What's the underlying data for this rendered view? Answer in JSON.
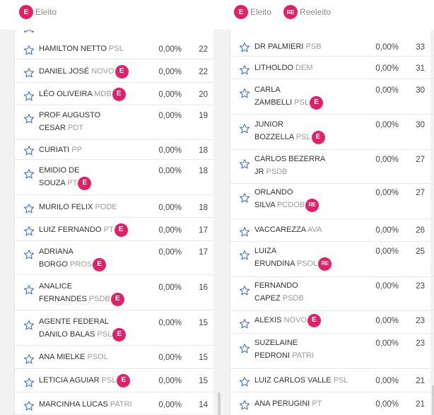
{
  "legend_left": {
    "badge": "E",
    "label": "Eleito"
  },
  "legend_right": [
    {
      "badge": "E",
      "label": "Eleito"
    },
    {
      "badge": "RE",
      "label": "Reeleito"
    }
  ],
  "left_column": [
    {
      "line1": "HAMILTON NETTO",
      "line2": "",
      "party": "PSL",
      "badge": "",
      "pct": "0,00%",
      "votes": "22"
    },
    {
      "line1": "DANIEL JOSÉ",
      "line2": "",
      "party": "NOVO",
      "badge": "E",
      "pct": "0,00%",
      "votes": "22"
    },
    {
      "line1": "LÉO OLIVEIRA",
      "line2": "",
      "party": "MDB",
      "badge": "E",
      "pct": "0,00%",
      "votes": "20"
    },
    {
      "line1": "PROF AUGUSTO",
      "line2": "CESAR",
      "party": "PDT",
      "badge": "",
      "pct": "0,00%",
      "votes": "19"
    },
    {
      "line1": "CURIATI",
      "line2": "",
      "party": "PP",
      "badge": "",
      "pct": "0,00%",
      "votes": "18"
    },
    {
      "line1": "EMIDIO DE",
      "line2": "SOUZA",
      "party": "PT",
      "badge": "E",
      "pct": "0,00%",
      "votes": "18"
    },
    {
      "line1": "MURILO FELIX",
      "line2": "",
      "party": "PODE",
      "badge": "",
      "pct": "0,00%",
      "votes": "18"
    },
    {
      "line1": "LUIZ FERNANDO",
      "line2": "",
      "party": "PT",
      "badge": "E",
      "pct": "0,00%",
      "votes": "17"
    },
    {
      "line1": "ADRIANA",
      "line2": "BORGO",
      "party": "PROS",
      "badge": "E",
      "pct": "0,00%",
      "votes": "17"
    },
    {
      "line1": "ANALICE",
      "line2": "FERNANDES",
      "party": "PSDB",
      "badge": "E",
      "pct": "0,00%",
      "votes": "16"
    },
    {
      "line1": "AGENTE FEDERAL",
      "line2": "DANILO BALAS",
      "party": "PSL",
      "badge": "E",
      "pct": "0,00%",
      "votes": "15"
    },
    {
      "line1": "ANA MIELKE",
      "line2": "",
      "party": "PSOL",
      "badge": "",
      "pct": "0,00%",
      "votes": "15"
    },
    {
      "line1": "LETICIA AGUIAR",
      "line2": "",
      "party": "PSL",
      "badge": "E",
      "pct": "0,00%",
      "votes": "15"
    },
    {
      "line1": "MARCINHA LUCAS",
      "line2": "",
      "party": "PATRI",
      "badge": "",
      "pct": "0,00%",
      "votes": "14"
    }
  ],
  "right_column": [
    {
      "line1": "DR PALMIERI",
      "line2": "",
      "party": "PSB",
      "badge": "",
      "pct": "0,00%",
      "votes": "33"
    },
    {
      "line1": "LITHOLDO",
      "line2": "",
      "party": "DEM",
      "badge": "",
      "pct": "0,00%",
      "votes": "31"
    },
    {
      "line1": "CARLA",
      "line2": "ZAMBELLI",
      "party": "PSL",
      "badge": "E",
      "pct": "0,00%",
      "votes": "30"
    },
    {
      "line1": "JUNIOR",
      "line2": "BOZZELLA",
      "party": "PSL",
      "badge": "E",
      "pct": "0,00%",
      "votes": "30"
    },
    {
      "line1": "CARLOS BEZERRA",
      "line2": "JR",
      "party": "PSDB",
      "badge": "",
      "pct": "0,00%",
      "votes": "27"
    },
    {
      "line1": "ORLANDO",
      "line2": "SILVA",
      "party": "PCdoB",
      "badge": "RE",
      "pct": "0,00%",
      "votes": "27"
    },
    {
      "line1": "VACCAREZZA",
      "line2": "",
      "party": "AVA",
      "badge": "",
      "pct": "0,00%",
      "votes": "26"
    },
    {
      "line1": "LUIZA",
      "line2": "ERUNDINA",
      "party": "PSOL",
      "badge": "RE",
      "pct": "0,00%",
      "votes": "25"
    },
    {
      "line1": "FERNANDO",
      "line2": "CAPEZ",
      "party": "PSDB",
      "badge": "",
      "pct": "0,00%",
      "votes": "23"
    },
    {
      "line1": "ALEXIS",
      "line2": "",
      "party": "NOVO",
      "badge": "E",
      "pct": "0,00%",
      "votes": "23"
    },
    {
      "line1": "SUZELAINE",
      "line2": "PEDRONI",
      "party": "PATRI",
      "badge": "",
      "pct": "0,00%",
      "votes": "23"
    },
    {
      "line1": "LUIZ CARLOS VALLE",
      "line2": "",
      "party": "PSL",
      "badge": "",
      "pct": "0,00%",
      "votes": "21"
    },
    {
      "line1": "ANA PERUGINI",
      "line2": "",
      "party": "PT",
      "badge": "",
      "pct": "0,00%",
      "votes": "21"
    }
  ],
  "colors": {
    "badge": "#e51f67",
    "star": "#3a6fd8",
    "party": "#9b9b9b"
  }
}
